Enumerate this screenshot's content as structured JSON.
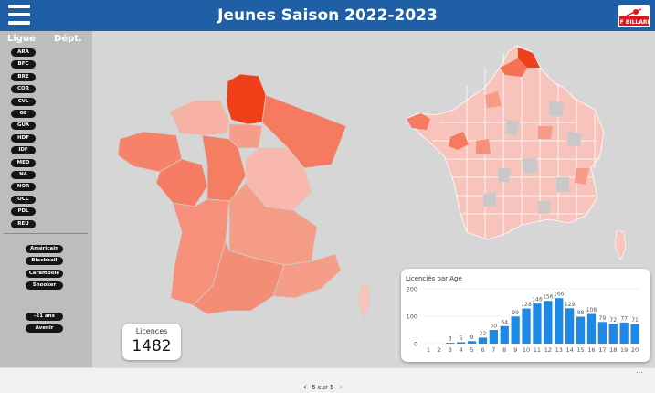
{
  "header": {
    "title": "Jeunes Saison 2022-2023",
    "logo_text": "FF BILLARD"
  },
  "sidebar": {
    "tab_ligue": "Ligue",
    "tab_dept": "Dépt.",
    "regions": [
      "ARA",
      "BFC",
      "BRE",
      "COR",
      "CVL",
      "GE",
      "GUA",
      "HDF",
      "IDF",
      "MED",
      "NA",
      "NOR",
      "OCC",
      "PDL",
      "REU"
    ],
    "modes": [
      "Américain",
      "Blackball",
      "Carambole",
      "Snooker"
    ],
    "ages": [
      "-21 ans",
      "Avenir"
    ]
  },
  "kpi": {
    "label": "Licences",
    "value": "1482"
  },
  "chart_data": {
    "type": "bar",
    "title": "Licenciés par Age",
    "categories": [
      "1",
      "2",
      "3",
      "4",
      "5",
      "6",
      "7",
      "8",
      "9",
      "10",
      "11",
      "12",
      "13",
      "14",
      "15",
      "16",
      "17",
      "18",
      "19",
      "20"
    ],
    "values": [
      0,
      0,
      3,
      5,
      9,
      22,
      50,
      64,
      99,
      128,
      146,
      156,
      166,
      129,
      98,
      108,
      79,
      72,
      77,
      71
    ],
    "data_labels": [
      "",
      "",
      "3",
      "5",
      "9",
      "22",
      "50",
      "64",
      "99",
      "128",
      "146",
      "156",
      "166",
      "129",
      "98",
      "108",
      "79",
      "72",
      "77",
      "71"
    ],
    "ylim": [
      0,
      200
    ],
    "yticks": [
      0,
      100,
      200
    ],
    "bar_color": "#1e88e5",
    "grid": true,
    "legend": "none"
  },
  "footer": {
    "page_text": "5 sur 5",
    "prev": "‹",
    "next": "›",
    "more": "..."
  },
  "colors": {
    "header_bg": "#1f5fa6",
    "sidebar_bg": "#bdbdbd",
    "canvas_bg": "#d6d6d6",
    "pill_bg": "#151515"
  }
}
